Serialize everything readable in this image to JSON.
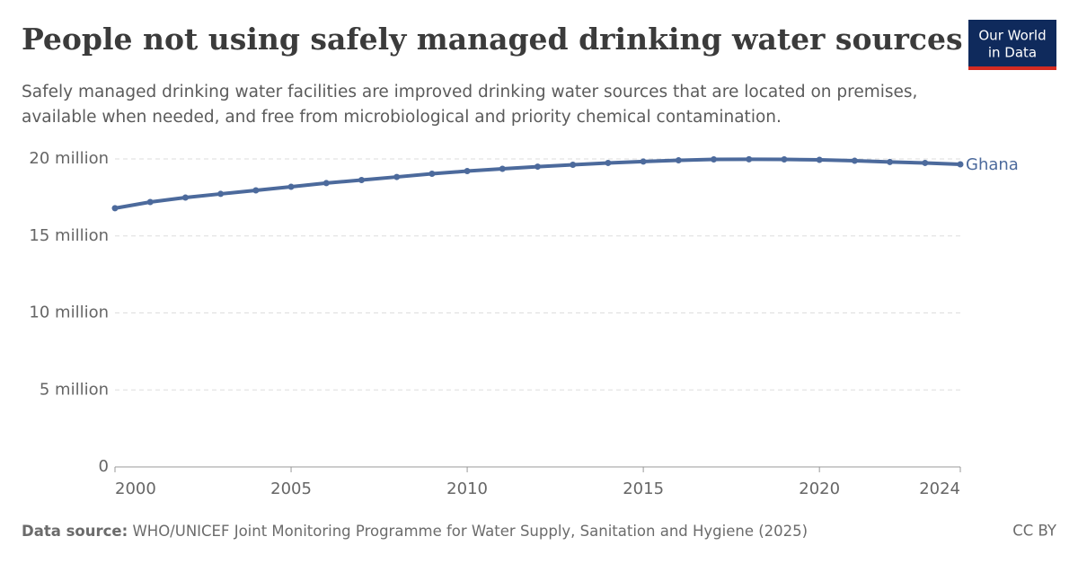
{
  "chart_data": {
    "type": "line",
    "title": "People not using safely managed drinking water sources",
    "subtitle": [
      "Safely managed drinking water facilities are improved drinking water sources that are located on premises,",
      "available when needed, and free from microbiological and priority chemical contamination."
    ],
    "logo": [
      "Our World",
      "in Data"
    ],
    "x": [
      2000,
      2001,
      2002,
      2003,
      2004,
      2005,
      2006,
      2007,
      2008,
      2009,
      2010,
      2011,
      2012,
      2013,
      2014,
      2015,
      2016,
      2017,
      2018,
      2019,
      2020,
      2021,
      2022,
      2023,
      2024
    ],
    "series": [
      {
        "name": "Ghana",
        "color": "#4c6a9c",
        "values": [
          16800000,
          17200000,
          17490000,
          17730000,
          17960000,
          18190000,
          18430000,
          18630000,
          18830000,
          19040000,
          19210000,
          19360000,
          19500000,
          19620000,
          19740000,
          19830000,
          19910000,
          19970000,
          19980000,
          19970000,
          19940000,
          19880000,
          19800000,
          19740000,
          19650000
        ]
      }
    ],
    "xlim": [
      2000,
      2024
    ],
    "xticks": [
      2000,
      2005,
      2010,
      2015,
      2020,
      2024
    ],
    "ylim": [
      0,
      20000000
    ],
    "yticks": [
      0,
      {
        "value": 5000000,
        "label": "5 million"
      },
      {
        "value": 10000000,
        "label": "10 million"
      },
      {
        "value": 15000000,
        "label": "15 million"
      },
      {
        "value": 20000000,
        "label": "20 million"
      }
    ],
    "grid": true,
    "source_label": "Data source:",
    "source_text": "WHO/UNICEF Joint Monitoring Programme for Water Supply, Sanitation and Hygiene (2025)",
    "license": "CC BY"
  }
}
